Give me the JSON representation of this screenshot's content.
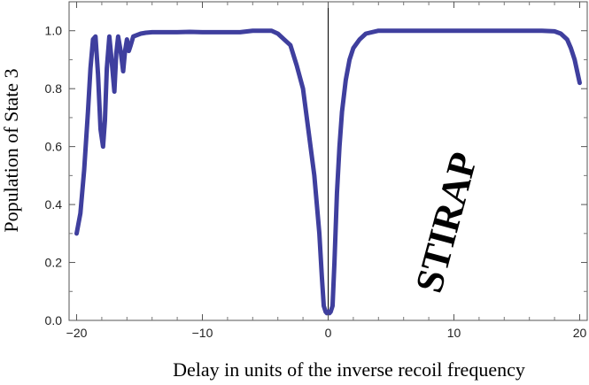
{
  "chart_data": {
    "type": "line",
    "title": "",
    "xlabel": "Delay in units of the inverse recoil frequency",
    "ylabel": "Population of State 3",
    "xlim": [
      -20.6,
      20.6
    ],
    "ylim": [
      0.0,
      1.1
    ],
    "xticks": [
      -20,
      -10,
      0,
      10,
      20
    ],
    "xtick_labels": [
      "−20",
      "−10",
      "0",
      "10",
      "20"
    ],
    "yticks": [
      0.0,
      0.2,
      0.4,
      0.6,
      0.8,
      1.0
    ],
    "ytick_labels": [
      "0.0",
      "0.2",
      "0.4",
      "0.6",
      "0.8",
      "1.0"
    ],
    "grid": false,
    "annotation": "STIRAP",
    "series": [
      {
        "name": "",
        "color": "#3f3f9e",
        "x": [
          -20.0,
          -19.7,
          -19.4,
          -19.1,
          -18.9,
          -18.7,
          -18.5,
          -18.3,
          -18.1,
          -17.9,
          -17.75,
          -17.6,
          -17.4,
          -17.2,
          -17.0,
          -16.85,
          -16.7,
          -16.5,
          -16.3,
          -16.15,
          -16.0,
          -15.85,
          -15.7,
          -15.5,
          -15.2,
          -14.9,
          -14.5,
          -14.0,
          -13.0,
          -12.0,
          -11.0,
          -10.0,
          -9.0,
          -8.0,
          -7.0,
          -6.0,
          -5.0,
          -4.5,
          -4.0,
          -3.5,
          -3.0,
          -2.5,
          -2.0,
          -1.7,
          -1.4,
          -1.1,
          -0.9,
          -0.7,
          -0.5,
          -0.35,
          -0.2,
          -0.1,
          0.0,
          0.1,
          0.2,
          0.35,
          0.5,
          0.7,
          0.9,
          1.1,
          1.4,
          1.7,
          2.0,
          2.5,
          3.0,
          4.0,
          5.0,
          8.0,
          12.0,
          15.0,
          17.0,
          18.0,
          18.5,
          19.0,
          19.3,
          19.6,
          19.8,
          20.0
        ],
        "y": [
          0.3,
          0.37,
          0.52,
          0.72,
          0.87,
          0.97,
          0.98,
          0.85,
          0.66,
          0.6,
          0.69,
          0.87,
          0.98,
          0.89,
          0.79,
          0.92,
          0.98,
          0.93,
          0.86,
          0.93,
          0.97,
          0.93,
          0.95,
          0.98,
          0.985,
          0.99,
          0.993,
          0.995,
          0.995,
          0.995,
          0.996,
          0.995,
          0.995,
          0.995,
          0.995,
          1.0,
          1.0,
          1.0,
          0.99,
          0.97,
          0.95,
          0.88,
          0.8,
          0.7,
          0.6,
          0.5,
          0.4,
          0.3,
          0.15,
          0.05,
          0.03,
          0.025,
          0.03,
          0.025,
          0.03,
          0.05,
          0.2,
          0.44,
          0.6,
          0.72,
          0.83,
          0.9,
          0.94,
          0.97,
          0.99,
          1.0,
          1.0,
          1.0,
          1.0,
          1.0,
          1.0,
          0.998,
          0.99,
          0.97,
          0.94,
          0.9,
          0.86,
          0.82
        ]
      }
    ]
  }
}
